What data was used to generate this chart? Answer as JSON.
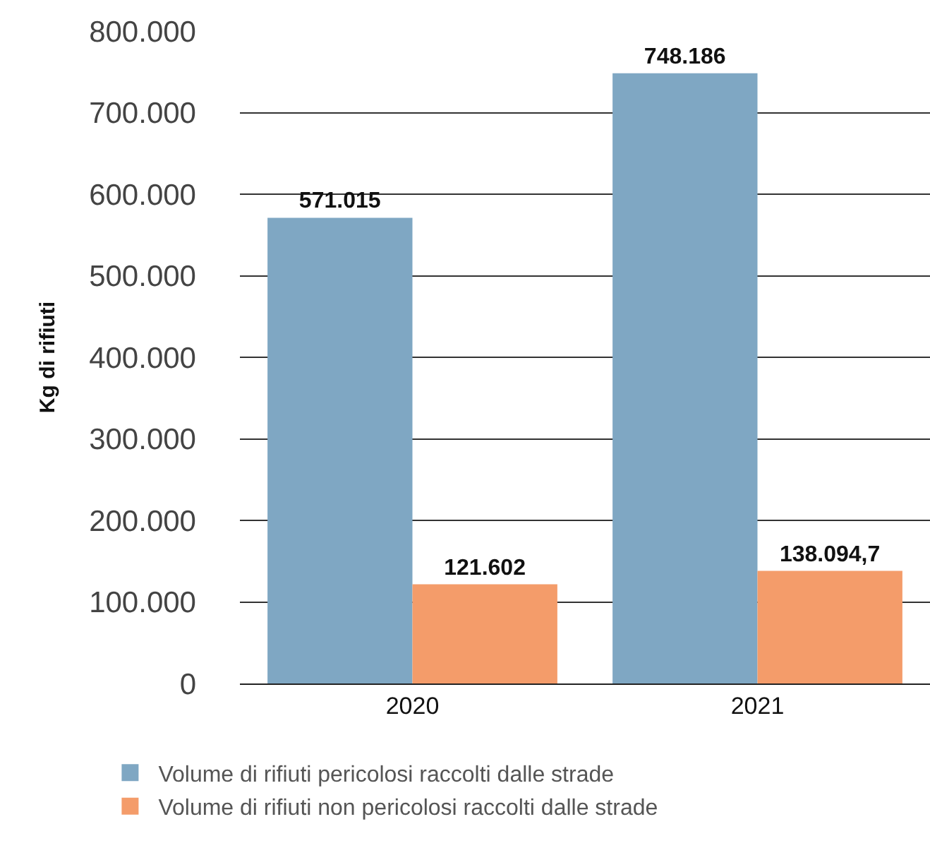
{
  "chart_data": {
    "type": "bar",
    "ylabel": "Kg di rifiuti",
    "categories": [
      "2020",
      "2021"
    ],
    "series": [
      {
        "name": "Volume di rifiuti pericolosi raccolti dalle strade",
        "color": "#7fa7c3",
        "values": [
          571015,
          748186
        ],
        "value_labels": [
          "571.015",
          "748.186"
        ]
      },
      {
        "name": "Volume di rifiuti non pericolosi raccolti dalle strade",
        "color": "#f49c6a",
        "values": [
          121602,
          138094.7
        ],
        "value_labels": [
          "121.602",
          "138.094,7"
        ]
      }
    ],
    "ylim": [
      0,
      800000
    ],
    "yticks": [
      {
        "value": 0,
        "label": "0"
      },
      {
        "value": 100000,
        "label": "100.000"
      },
      {
        "value": 200000,
        "label": "200.000"
      },
      {
        "value": 300000,
        "label": "300.000"
      },
      {
        "value": 400000,
        "label": "400.000"
      },
      {
        "value": 500000,
        "label": "500.000"
      },
      {
        "value": 600000,
        "label": "600.000"
      },
      {
        "value": 700000,
        "label": "700.000"
      },
      {
        "value": 800000,
        "label": "800.000"
      }
    ],
    "grid": "y",
    "legend": "bottom"
  }
}
